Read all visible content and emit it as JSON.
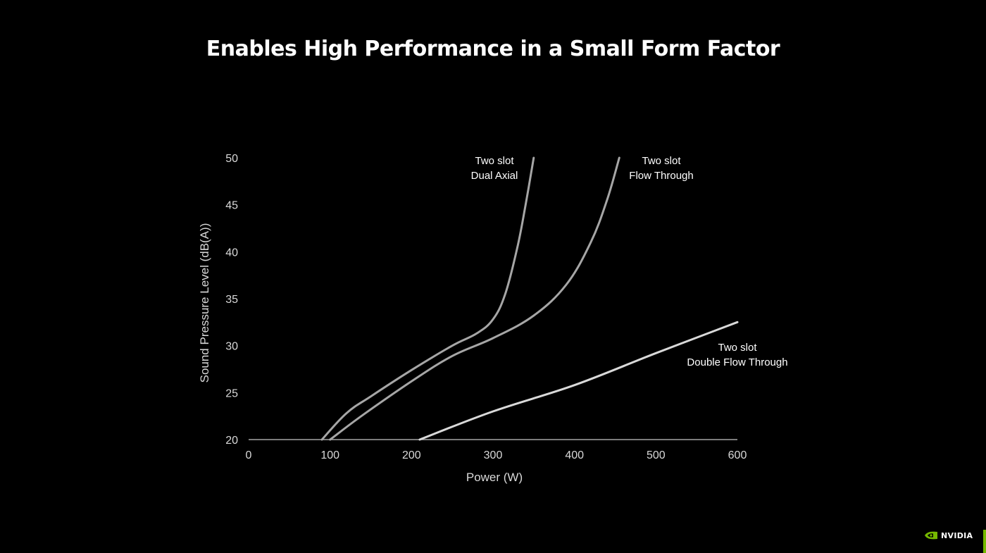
{
  "slide": {
    "title": "Enables High Performance in a Small Form Factor"
  },
  "brand": {
    "logo_text": "NVIDIA",
    "icon": "nvidia-eye-icon",
    "accent_color": "#76b900"
  },
  "chart_data": {
    "type": "line",
    "xlabel": "Power (W)",
    "ylabel": "Sound Pressure Level (dB(A))",
    "xlim": [
      0,
      600
    ],
    "ylim": [
      20,
      50
    ],
    "xticks": [
      0,
      100,
      200,
      300,
      400,
      500,
      600
    ],
    "yticks": [
      20,
      25,
      30,
      35,
      40,
      45,
      50
    ],
    "grid": false,
    "series": [
      {
        "name": "Two slot Dual Axial",
        "label_lines": [
          "Two slot",
          "Dual Axial"
        ],
        "color": "#a6a6a6",
        "x": [
          0,
          90,
          120,
          150,
          200,
          250,
          280,
          300,
          315,
          330,
          340,
          350
        ],
        "y": [
          20,
          20,
          22.8,
          24.6,
          27.4,
          30.0,
          31.3,
          32.8,
          35.5,
          40.5,
          45.0,
          50.0
        ]
      },
      {
        "name": "Two slot Flow Through",
        "label_lines": [
          "Two slot",
          "Flow Through"
        ],
        "color": "#a6a6a6",
        "x": [
          0,
          100,
          140,
          200,
          250,
          300,
          350,
          390,
          420,
          440,
          455
        ],
        "y": [
          20,
          20,
          22.6,
          26.2,
          28.9,
          30.8,
          33.2,
          36.5,
          41.0,
          45.5,
          50.0
        ]
      },
      {
        "name": "Two slot Double Flow Through",
        "label_lines": [
          "Two slot",
          "Double Flow Through"
        ],
        "color": "#d9d9d9",
        "x": [
          0,
          210,
          300,
          400,
          500,
          600
        ],
        "y": [
          20,
          20,
          23.0,
          25.8,
          29.2,
          32.5
        ]
      }
    ]
  }
}
